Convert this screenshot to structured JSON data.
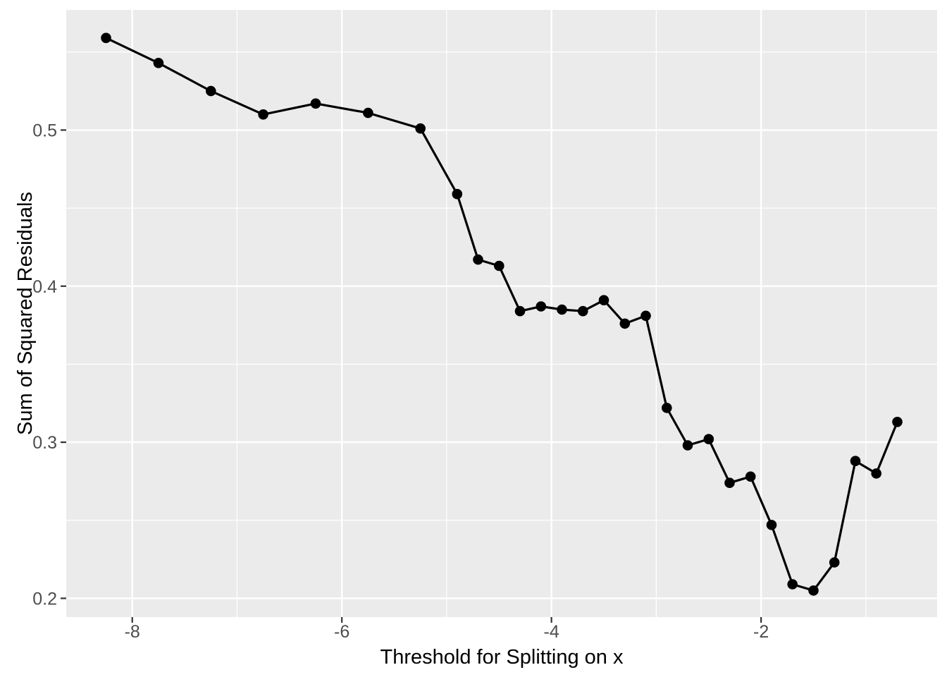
{
  "chart_data": {
    "type": "line",
    "title": "",
    "xlabel": "Threshold for Splitting on x",
    "ylabel": "Sum of Squared Residuals",
    "x": [
      -8.25,
      -7.75,
      -7.25,
      -6.75,
      -6.25,
      -5.75,
      -5.25,
      -4.9,
      -4.7,
      -4.5,
      -4.3,
      -4.1,
      -3.9,
      -3.7,
      -3.5,
      -3.3,
      -3.1,
      -2.9,
      -2.7,
      -2.5,
      -2.3,
      -2.1,
      -1.9,
      -1.7,
      -1.5,
      -1.3,
      -1.1,
      -0.9,
      -0.7
    ],
    "y": [
      0.559,
      0.543,
      0.525,
      0.51,
      0.517,
      0.511,
      0.501,
      0.459,
      0.417,
      0.413,
      0.384,
      0.387,
      0.385,
      0.384,
      0.391,
      0.376,
      0.381,
      0.322,
      0.298,
      0.302,
      0.274,
      0.278,
      0.247,
      0.209,
      0.205,
      0.223,
      0.288,
      0.28,
      0.313
    ],
    "xlim": [
      -8.63,
      -0.32
    ],
    "ylim": [
      0.188,
      0.577
    ],
    "x_major_ticks": [
      -8,
      -6,
      -4,
      -2
    ],
    "x_tick_labels": [
      "-8",
      "-6",
      "-4",
      "-2"
    ],
    "x_minor_ticks": [
      -7,
      -5,
      -3,
      -1
    ],
    "y_major_ticks": [
      0.2,
      0.3,
      0.4,
      0.5
    ],
    "y_tick_labels": [
      "0.2",
      "0.3",
      "0.4",
      "0.5"
    ],
    "y_minor_ticks": [
      0.25,
      0.35,
      0.45,
      0.55
    ],
    "grid": "major+minor",
    "legend": "none",
    "marker": "filled-circle",
    "style": {
      "page_bg": "#FFFFFF",
      "panel_bg": "#EBEBEB",
      "grid_color": "#FFFFFF",
      "line_color": "#000000",
      "point_color": "#000000",
      "tick_color": "#333333",
      "tick_label_color": "#4D4D4D",
      "axis_title_color": "#000000"
    }
  }
}
